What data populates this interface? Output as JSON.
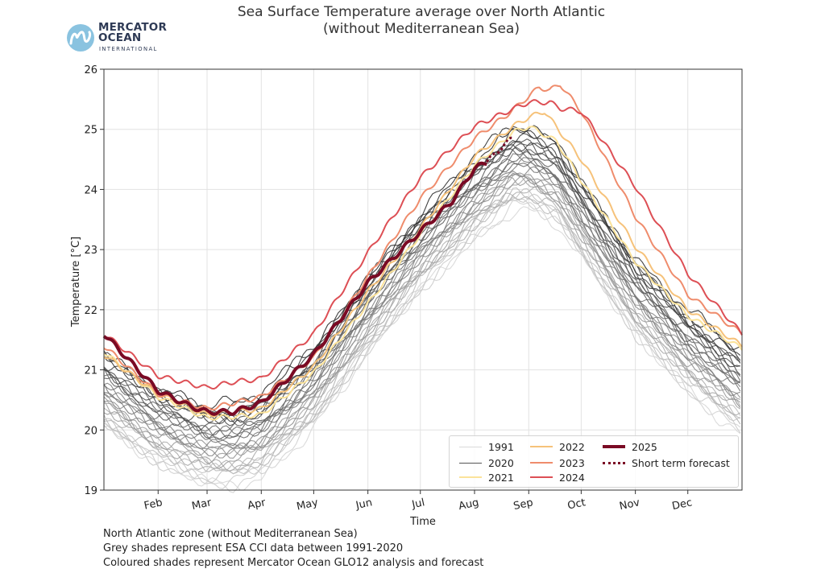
{
  "title_line1": "Sea Surface Temperature average over North Atlantic",
  "title_line2": "(without Mediterranean Sea)",
  "logo": {
    "line1": "MERCATOR",
    "line2": "OCEAN",
    "line3": "INTERNATIONAL"
  },
  "notes": [
    "North Atlantic zone (without Mediterranean Sea)",
    "Grey shades represent ESA CCI data between 1991-2020",
    "Coloured shades represent Mercator Ocean GLO12 analysis and forecast"
  ],
  "legend": [
    {
      "label": "1991",
      "color": "#d9d9d9",
      "style": "solid",
      "width": 1
    },
    {
      "label": "2020",
      "color": "#555555",
      "style": "solid",
      "width": 1
    },
    {
      "label": "2021",
      "color": "#fbe39a",
      "style": "solid",
      "width": 2
    },
    {
      "label": "2022",
      "color": "#f6c27a",
      "style": "solid",
      "width": 2
    },
    {
      "label": "2023",
      "color": "#ef8c6c",
      "style": "solid",
      "width": 2
    },
    {
      "label": "2024",
      "color": "#dd4f55",
      "style": "solid",
      "width": 2
    },
    {
      "label": "2025",
      "color": "#7a0a24",
      "style": "solid",
      "width": 4
    },
    {
      "label": "Short term forecast",
      "color": "#7a0a24",
      "style": "dotted",
      "width": 3
    }
  ],
  "chart_data": {
    "type": "line",
    "title": "Sea Surface Temperature average over North Atlantic (without Mediterranean Sea)",
    "xlabel": "Time",
    "ylabel": "Temperature [°C]",
    "xlim": [
      1,
      366
    ],
    "ylim": [
      19,
      26
    ],
    "yticks": [
      19,
      20,
      21,
      22,
      23,
      24,
      25,
      26
    ],
    "xtick_labels": [
      "Feb",
      "Mar",
      "Apr",
      "May",
      "Jun",
      "Jul",
      "Aug",
      "Sep",
      "Oct",
      "Nov",
      "Dec"
    ],
    "xtick_days": [
      32,
      60,
      91,
      121,
      152,
      182,
      213,
      244,
      274,
      305,
      335
    ],
    "grid": true,
    "legend_position": "lower-right",
    "climatology": {
      "years": "1991-2020",
      "anchor_days": [
        1,
        32,
        60,
        75,
        91,
        121,
        152,
        182,
        213,
        235,
        244,
        260,
        274,
        305,
        335,
        366
      ],
      "mean_values": [
        20.75,
        20.15,
        19.85,
        19.85,
        20.0,
        20.8,
        22.0,
        23.05,
        23.95,
        24.45,
        24.45,
        24.2,
        23.6,
        22.3,
        21.4,
        20.7
      ],
      "range_low": -0.75,
      "range_high": 0.55
    },
    "series": [
      {
        "name": "2021",
        "days": [
          1,
          32,
          60,
          91,
          121,
          152,
          182,
          213,
          235,
          244,
          260,
          274,
          305,
          335,
          366
        ],
        "values": [
          21.3,
          20.55,
          20.2,
          20.25,
          20.95,
          22.1,
          23.25,
          24.4,
          24.95,
          25.05,
          24.8,
          24.15,
          22.8,
          21.9,
          21.35
        ]
      },
      {
        "name": "2022",
        "days": [
          1,
          32,
          60,
          91,
          121,
          152,
          182,
          213,
          235,
          244,
          253,
          274,
          305,
          335,
          366
        ],
        "values": [
          21.25,
          20.6,
          20.25,
          20.35,
          21.05,
          22.3,
          23.35,
          24.55,
          25.05,
          25.2,
          25.3,
          24.5,
          23.05,
          22.0,
          21.4
        ]
      },
      {
        "name": "2023",
        "days": [
          1,
          32,
          60,
          91,
          121,
          152,
          182,
          213,
          232,
          244,
          250,
          256,
          262,
          274,
          305,
          335,
          366
        ],
        "values": [
          21.4,
          20.6,
          20.35,
          20.55,
          21.2,
          22.55,
          23.85,
          24.85,
          25.25,
          25.55,
          25.7,
          25.65,
          25.75,
          25.3,
          23.55,
          22.25,
          21.6
        ]
      },
      {
        "name": "2024",
        "days": [
          1,
          32,
          60,
          75,
          91,
          121,
          152,
          182,
          213,
          232,
          244,
          256,
          262,
          274,
          305,
          335,
          366
        ],
        "values": [
          21.6,
          20.9,
          20.7,
          20.8,
          20.85,
          21.6,
          22.95,
          24.2,
          25.05,
          25.3,
          25.45,
          25.45,
          25.35,
          25.3,
          24.05,
          22.6,
          21.6
        ]
      },
      {
        "name": "2025",
        "days": [
          1,
          32,
          50,
          60,
          75,
          91,
          121,
          152,
          182,
          200,
          213,
          220
        ],
        "values": [
          21.6,
          20.65,
          20.4,
          20.3,
          20.3,
          20.45,
          21.25,
          22.45,
          23.3,
          23.8,
          24.35,
          24.45
        ]
      },
      {
        "name": "Short term forecast",
        "days": [
          220,
          225,
          230,
          235
        ],
        "values": [
          24.45,
          24.6,
          24.75,
          24.85
        ]
      }
    ]
  }
}
